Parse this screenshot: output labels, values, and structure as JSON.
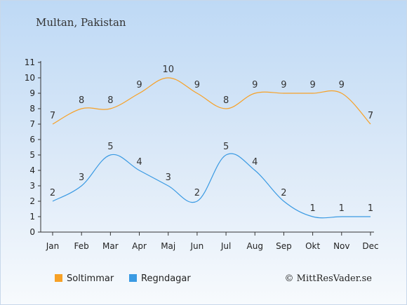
{
  "title": "Multan, Pakistan",
  "copyright": "© MittResVader.se",
  "colors": {
    "sun": "#f7a126",
    "rain": "#3a9ae3"
  },
  "chart_data": {
    "type": "line",
    "categories": [
      "Jan",
      "Feb",
      "Mar",
      "Apr",
      "Maj",
      "Jun",
      "Jul",
      "Aug",
      "Sep",
      "Okt",
      "Nov",
      "Dec"
    ],
    "yticks": [
      "0",
      "1",
      "2",
      "3",
      "4",
      "5",
      "6",
      "7",
      "8",
      "9",
      "10",
      "11"
    ],
    "ylim": [
      0,
      11
    ],
    "grid": false,
    "legend": "bottom-left",
    "series": [
      {
        "name": "Soltimmar",
        "values": [
          7,
          8,
          8,
          9,
          10,
          9,
          8,
          9,
          9,
          9,
          9,
          7
        ],
        "labels": [
          "7",
          "8",
          "8",
          "9",
          "10",
          "9",
          "8",
          "9",
          "9",
          "9",
          "9",
          "7"
        ]
      },
      {
        "name": "Regndagar",
        "values": [
          2,
          3,
          5,
          4,
          3,
          2,
          5,
          4,
          2,
          1,
          1,
          1
        ],
        "labels": [
          "2",
          "3",
          "5",
          "4",
          "3",
          "2",
          "5",
          "4",
          "2",
          "1",
          "1",
          "1"
        ]
      }
    ]
  }
}
